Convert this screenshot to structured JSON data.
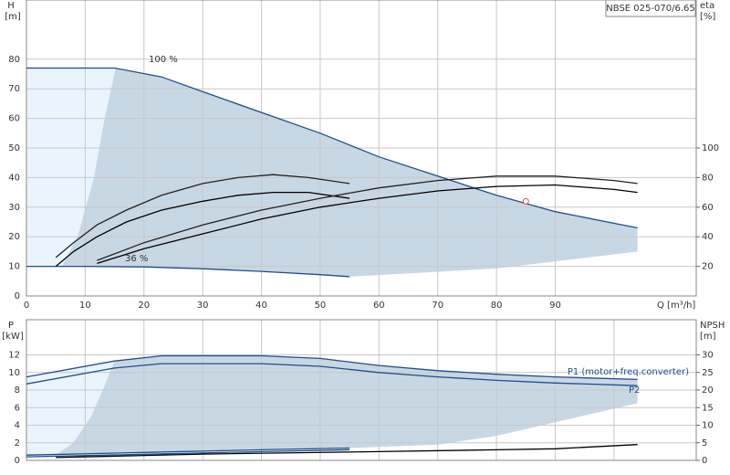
{
  "chart_data": [
    {
      "type": "line",
      "title": "NBSE 025-070/6.65",
      "ylabel": "H",
      "yunit": "[m]",
      "y2label": "eta",
      "y2unit": "[%]",
      "xlabel": "Q [m³/h]",
      "xlim": [
        0,
        114
      ],
      "xticks": [
        0,
        10,
        20,
        30,
        40,
        50,
        60,
        70,
        80,
        90
      ],
      "ylim": [
        0,
        100
      ],
      "yticks": [
        0,
        10,
        20,
        30,
        40,
        50,
        60,
        70,
        80
      ],
      "y2lim": [
        0,
        200
      ],
      "y2ticks": [
        20,
        40,
        60,
        80,
        100
      ],
      "grid": true,
      "areas": [
        {
          "color": "#eaf4fd",
          "x": [
            0,
            15.2,
            13.3,
            11.5,
            8.7,
            6,
            0
          ],
          "y": [
            77,
            77,
            60,
            40,
            20,
            10,
            10
          ]
        },
        {
          "color": "#c8d7e4",
          "x": [
            6,
            8.7,
            11.5,
            13.3,
            15.2,
            23,
            30,
            40,
            50,
            60,
            70,
            80,
            90,
            104,
            104,
            80,
            55,
            50,
            40,
            30,
            20,
            10,
            6
          ],
          "y": [
            10,
            20,
            40,
            60,
            77,
            74,
            69,
            62,
            55,
            47,
            40.5,
            34,
            28.5,
            23,
            15,
            9.3,
            6.5,
            7.2,
            8.3,
            9.2,
            9.8,
            10,
            10
          ]
        }
      ],
      "series": [
        {
          "color": "#1f4e8c",
          "x": [
            0,
            15,
            23,
            30,
            40,
            50,
            60,
            70,
            80,
            90,
            104
          ],
          "y": [
            77,
            77,
            74,
            69,
            62,
            55,
            47,
            40.5,
            34,
            28.5,
            23
          ]
        },
        {
          "color": "#1f4e8c",
          "x": [
            0,
            10,
            20,
            30,
            40,
            50,
            55
          ],
          "y": [
            10,
            10,
            9.8,
            9.2,
            8.3,
            7.2,
            6.5
          ]
        },
        {
          "color": "#222222",
          "axis": "y2",
          "x": [
            5,
            8,
            12,
            17,
            23,
            30,
            36,
            42,
            48,
            55
          ],
          "y": [
            26,
            36,
            48,
            58,
            68,
            76,
            80,
            82,
            80,
            76
          ]
        },
        {
          "color": "#000000",
          "axis": "y2",
          "x": [
            5,
            8,
            12,
            17,
            23,
            30,
            36,
            42,
            48,
            55
          ],
          "y": [
            20,
            30,
            40,
            50,
            58,
            64,
            68,
            70,
            70,
            66
          ]
        },
        {
          "color": "#222222",
          "axis": "y2",
          "x": [
            12,
            20,
            30,
            40,
            50,
            60,
            70,
            80,
            90,
            100,
            104
          ],
          "y": [
            24,
            36,
            48,
            58,
            66,
            73,
            78,
            81,
            81,
            78,
            76
          ]
        },
        {
          "color": "#000000",
          "axis": "y2",
          "x": [
            12,
            20,
            30,
            40,
            50,
            60,
            70,
            80,
            90,
            100,
            104
          ],
          "y": [
            22,
            32,
            42,
            52,
            60,
            66,
            71,
            74,
            75,
            72,
            70
          ]
        }
      ],
      "points": [
        {
          "x": 85,
          "y": 32,
          "color": "#e05050"
        }
      ],
      "annotations": [
        "100 %",
        "36 %"
      ]
    },
    {
      "type": "line",
      "ylabel": "P",
      "yunit": "[kW]",
      "y2label": "NPSH",
      "y2unit": "[m]",
      "xlim": [
        0,
        114
      ],
      "xticks": [
        0,
        10,
        20,
        30,
        40,
        50,
        60,
        70,
        80,
        90,
        100
      ],
      "xtick_labels": false,
      "ylim": [
        0,
        16
      ],
      "yticks": [
        0,
        2,
        4,
        6,
        8,
        10,
        12
      ],
      "y2lim": [
        0,
        40
      ],
      "y2ticks": [
        0,
        5,
        10,
        15,
        20,
        25,
        30
      ],
      "grid": true,
      "areas": [
        {
          "color": "#eaf4fd",
          "x": [
            0,
            15,
            13,
            11,
            8,
            5,
            0
          ],
          "y": [
            9.5,
            11.3,
            8,
            5,
            2,
            0.6,
            0.5
          ]
        },
        {
          "color": "#c8d7e4",
          "x": [
            5,
            8,
            11,
            13,
            15,
            23,
            40,
            50,
            60,
            70,
            80,
            90,
            104,
            104,
            80,
            70,
            55,
            40,
            20,
            5
          ],
          "y": [
            0.6,
            2,
            5,
            8,
            11.3,
            11.9,
            11.9,
            11.6,
            10.8,
            10.2,
            9.8,
            9.5,
            9.2,
            6.5,
            2.8,
            1.8,
            1.4,
            1.2,
            0.9,
            0.6
          ]
        }
      ],
      "series": [
        {
          "name": "P1 (motor+freq.converter)",
          "color": "#1f4e8c",
          "x": [
            0,
            15,
            23,
            40,
            50,
            60,
            70,
            80,
            90,
            104
          ],
          "y": [
            9.5,
            11.3,
            11.9,
            11.9,
            11.6,
            10.8,
            10.2,
            9.8,
            9.5,
            9.2
          ]
        },
        {
          "name": "P2",
          "color": "#1f4e8c",
          "x": [
            0,
            15,
            23,
            40,
            50,
            60,
            70,
            80,
            90,
            104
          ],
          "y": [
            8.7,
            10.5,
            11,
            11,
            10.7,
            10,
            9.5,
            9.1,
            8.8,
            8.5
          ]
        },
        {
          "color": "#1f4e8c",
          "x": [
            0,
            20,
            40,
            55
          ],
          "y": [
            0.6,
            0.9,
            1.2,
            1.4
          ]
        },
        {
          "color": "#1f4e8c",
          "x": [
            0,
            20,
            40,
            55
          ],
          "y": [
            0.4,
            0.7,
            1.0,
            1.2
          ]
        },
        {
          "color": "#000000",
          "axis": "y2",
          "x": [
            5,
            30,
            60,
            80,
            90,
            104
          ],
          "y": [
            0.8,
            1.8,
            2.5,
            3.0,
            3.3,
            4.5
          ]
        }
      ]
    }
  ]
}
